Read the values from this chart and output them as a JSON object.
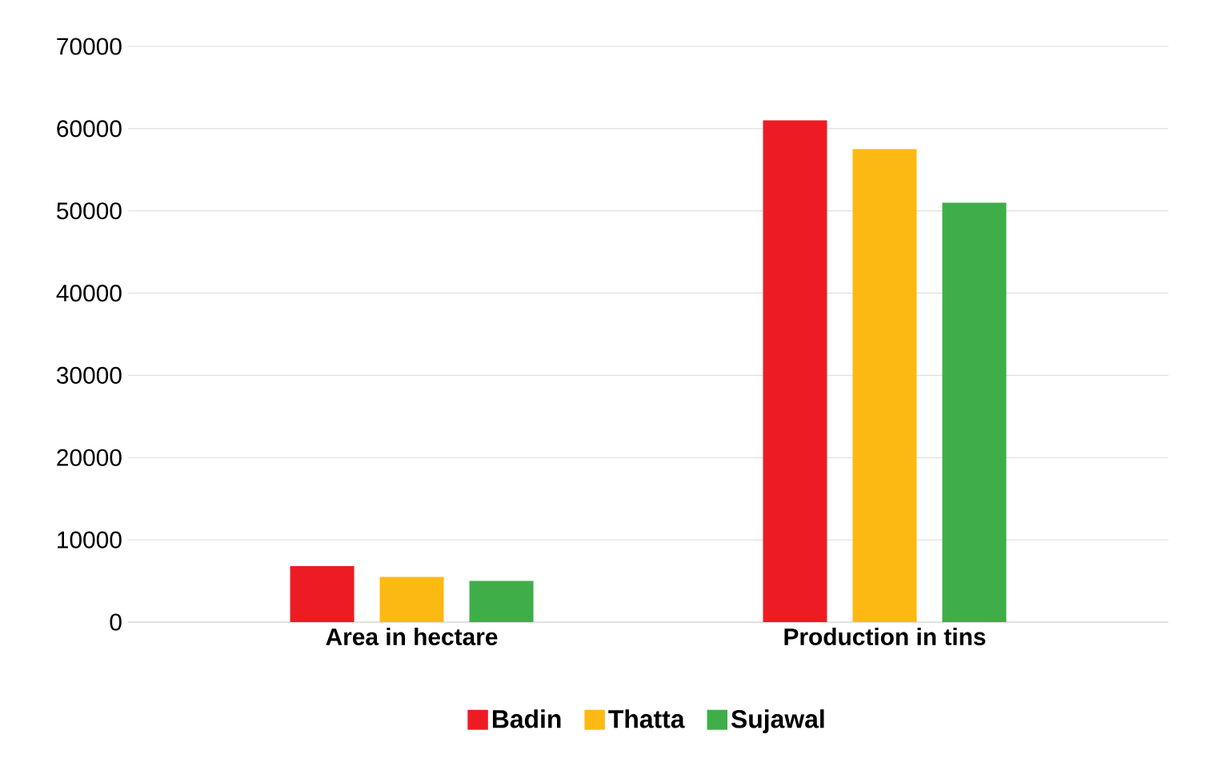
{
  "chart_data": {
    "type": "bar",
    "categories": [
      "Area in hectare",
      "Production in tins"
    ],
    "series": [
      {
        "name": "Badin",
        "color": "#ed1c24",
        "values": [
          6800,
          61000
        ]
      },
      {
        "name": "Thatta",
        "color": "#fdb913",
        "values": [
          5500,
          57500
        ]
      },
      {
        "name": "Sujawal",
        "color": "#3fae49",
        "values": [
          5000,
          51000
        ]
      }
    ],
    "ylim": [
      0,
      70000
    ],
    "yticks": [
      0,
      10000,
      20000,
      30000,
      40000,
      50000,
      60000,
      70000
    ],
    "grid": "y",
    "legend": "bottom"
  }
}
